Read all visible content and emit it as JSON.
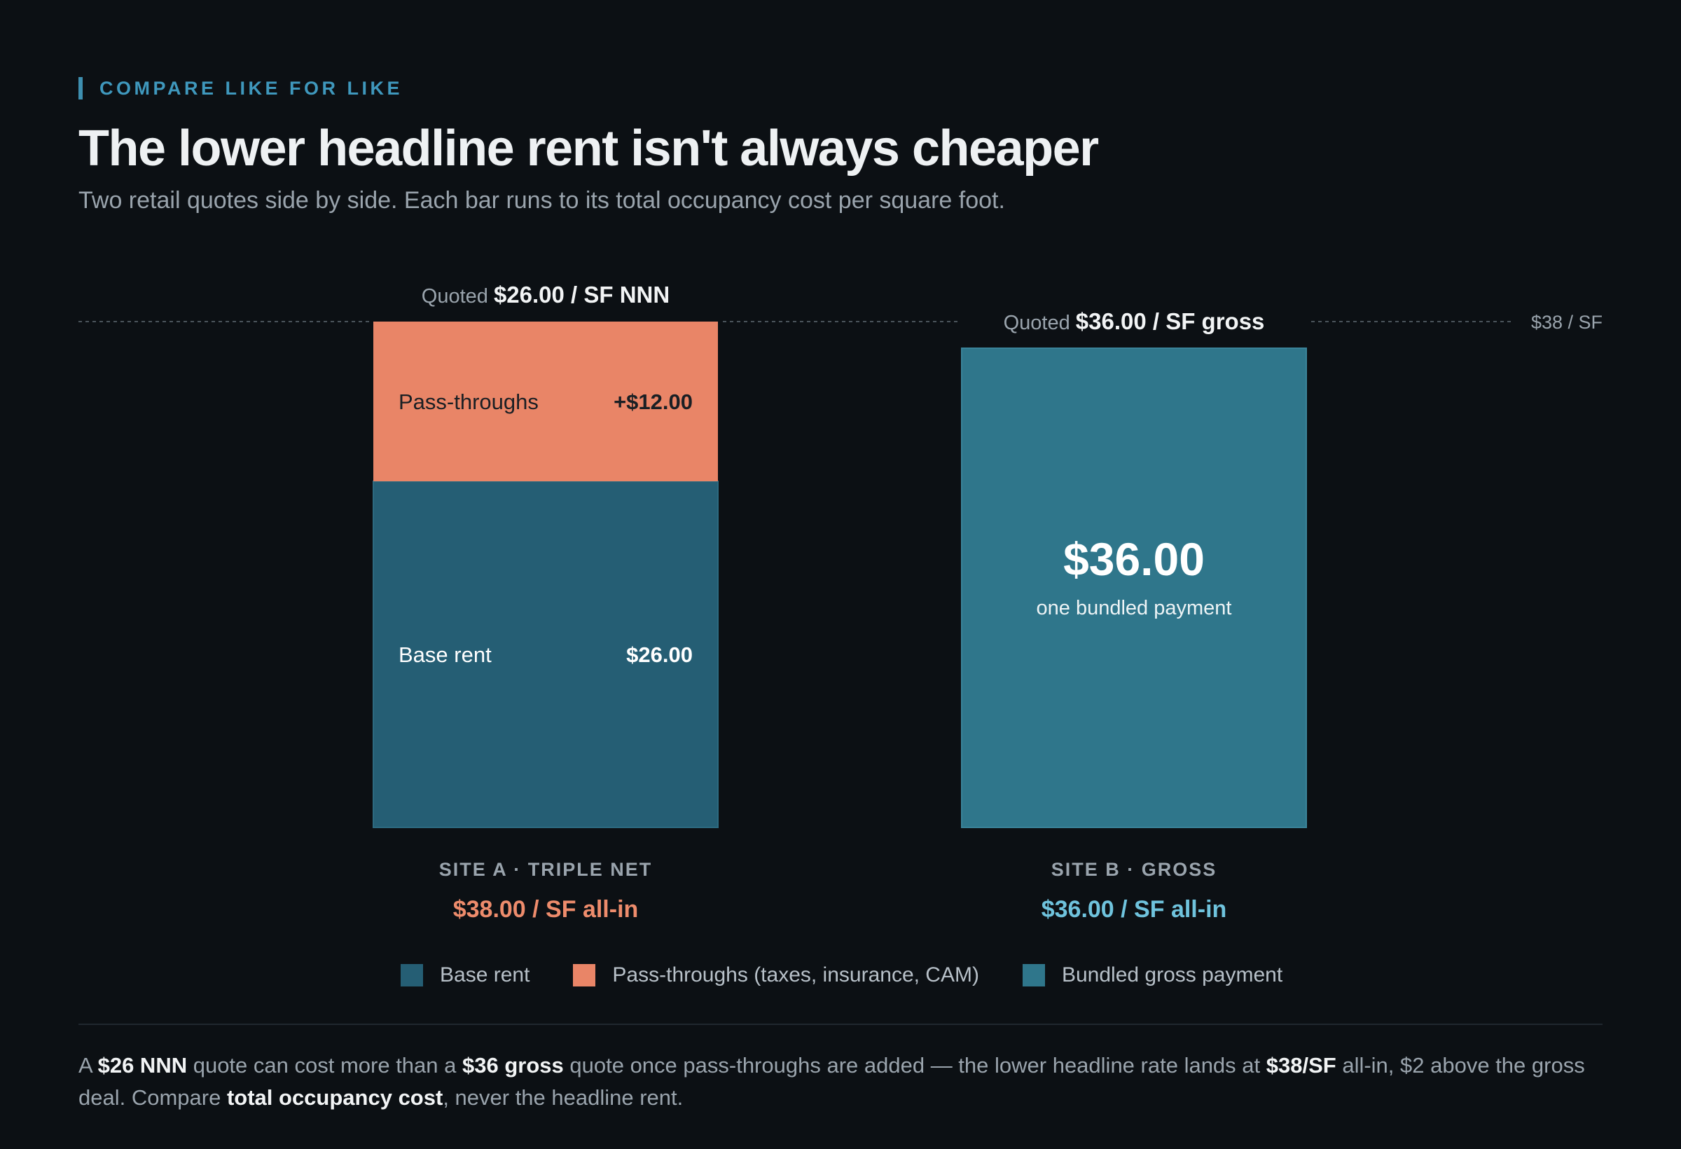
{
  "eyebrow": "COMPARE LIKE FOR LIKE",
  "title": "The lower headline rent isn't always cheaper",
  "subtitle": "Two retail quotes side by side. Each bar runs to its total occupancy cost per square foot.",
  "colors": {
    "base_rent": "#255e74",
    "pass_throughs": "#e98567",
    "bundled_gross": "#2f768b",
    "accent_a": "#ee8c6c",
    "accent_b": "#6fc3dd"
  },
  "chart_data": {
    "type": "bar",
    "stacked": true,
    "ylim": [
      0,
      38
    ],
    "categories": [
      "SITE A · TRIPLE NET",
      "SITE B · GROSS"
    ],
    "series": [
      {
        "name": "Base rent",
        "values": [
          26,
          0
        ]
      },
      {
        "name": "Pass-throughs (taxes, insurance, CAM)",
        "values": [
          12,
          0
        ]
      },
      {
        "name": "Bundled gross payment",
        "values": [
          0,
          36
        ]
      }
    ],
    "reference_line": {
      "value": 38,
      "label": "$38 / SF"
    },
    "bars": [
      {
        "quote_prefix": "Quoted",
        "quote_value": "$26.00 / SF NNN",
        "category": "SITE A · TRIPLE NET",
        "all_in": "$38.00 / SF all-in",
        "segments": [
          {
            "label": "Base rent",
            "value_label": "$26.00",
            "value": 26
          },
          {
            "label": "Pass-throughs",
            "value_label": "+$12.00",
            "value": 12
          }
        ]
      },
      {
        "quote_prefix": "Quoted",
        "quote_value": "$36.00 / SF gross",
        "category": "SITE B · GROSS",
        "all_in": "$36.00 / SF all-in",
        "big_value": "$36.00",
        "big_caption": "one bundled payment",
        "value": 36
      }
    ],
    "legend": [
      "Base rent",
      "Pass-throughs (taxes, insurance, CAM)",
      "Bundled gross payment"
    ]
  },
  "footnote": {
    "p1": "A ",
    "b1": "$26 NNN",
    "p2": " quote can cost more than a ",
    "b2": "$36 gross",
    "p3": " quote once pass-throughs are added — the lower headline rate lands at ",
    "b3": "$38/SF",
    "p4": " all-in, $2 above the gross deal. Compare ",
    "b4": "total occupancy cost",
    "p5": ", never the headline rent."
  }
}
